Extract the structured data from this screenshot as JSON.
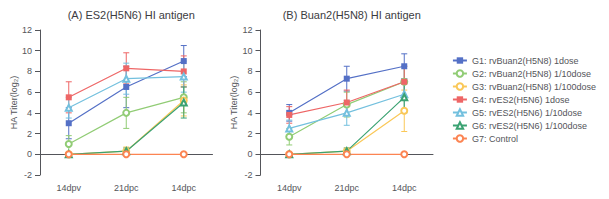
{
  "chart_data": [
    {
      "type": "line",
      "title": "(A) ES2(H5N6) HI antigen",
      "ylabel": "HA Titer(log₂)",
      "categories": [
        "14dpv",
        "21dpc",
        "14dpc"
      ],
      "ylim": [
        -2,
        12
      ],
      "yticks": [
        -2,
        0,
        2,
        4,
        6,
        8,
        10,
        12
      ],
      "grid": false,
      "legend": "right",
      "series": [
        {
          "name": "G1: rvBuan2(H5N8) 1dose",
          "marker": "square",
          "values": [
            3.0,
            6.5,
            9.0
          ],
          "errors": [
            1.5,
            2.0,
            1.5
          ]
        },
        {
          "name": "G2: rvBuan2(H5N8) 1/10dose",
          "marker": "open-circle",
          "values": [
            1.0,
            4.0,
            5.5
          ],
          "errors": [
            0.8,
            1.5,
            1.5
          ]
        },
        {
          "name": "G3: rvBuan2(H5N8) 1/100dose",
          "marker": "open-circle",
          "values": [
            0.0,
            0.3,
            5.2
          ],
          "errors": [
            0.0,
            0.4,
            1.5
          ]
        },
        {
          "name": "G4: rvES2(H5N6) 1dose",
          "marker": "square",
          "values": [
            5.5,
            8.3,
            8.0
          ],
          "errors": [
            1.5,
            1.5,
            1.5
          ]
        },
        {
          "name": "G5: rvES2(H5N6) 1/10dose",
          "marker": "open-triangle",
          "values": [
            4.5,
            7.3,
            7.5
          ],
          "errors": [
            1.0,
            1.5,
            1.5
          ]
        },
        {
          "name": "G6: rvES2(H5N6) 1/100dose",
          "marker": "open-triangle",
          "values": [
            0.0,
            0.3,
            5.0
          ],
          "errors": [
            0.0,
            0.3,
            1.5
          ]
        },
        {
          "name": "G7: Control",
          "marker": "open-circle",
          "values": [
            0.0,
            0.0,
            0.0
          ],
          "errors": [
            0.0,
            0.0,
            0.0
          ]
        }
      ]
    },
    {
      "type": "line",
      "title": "(B) Buan2(H5N8) HI antigen",
      "ylabel": "HA Titer(log₂)",
      "categories": [
        "14dpv",
        "21dpc",
        "14dpc"
      ],
      "ylim": [
        -2,
        12
      ],
      "yticks": [
        -2,
        0,
        2,
        4,
        6,
        8,
        10,
        12
      ],
      "grid": false,
      "series": [
        {
          "name": "G1: rvBuan2(H5N8) 1dose",
          "marker": "square",
          "values": [
            4.0,
            7.3,
            8.5
          ],
          "errors": [
            0.8,
            1.2,
            1.2
          ]
        },
        {
          "name": "G2: rvBuan2(H5N8) 1/10dose",
          "marker": "open-circle",
          "values": [
            1.7,
            4.8,
            7.0
          ],
          "errors": [
            0.8,
            1.2,
            1.5
          ]
        },
        {
          "name": "G3: rvBuan2(H5N8) 1/100dose",
          "marker": "open-circle",
          "values": [
            0.0,
            0.3,
            4.2
          ],
          "errors": [
            0.0,
            0.3,
            2.0
          ]
        },
        {
          "name": "G4: rvES2(H5N6) 1dose",
          "marker": "square",
          "values": [
            3.8,
            5.0,
            7.0
          ],
          "errors": [
            0.8,
            1.2,
            1.5
          ]
        },
        {
          "name": "G5: rvES2(H5N6) 1/10dose",
          "marker": "open-triangle",
          "values": [
            2.5,
            4.0,
            5.8
          ],
          "errors": [
            0.8,
            1.2,
            1.5
          ]
        },
        {
          "name": "G6: rvES2(H5N6) 1/100dose",
          "marker": "open-triangle",
          "values": [
            0.0,
            0.3,
            5.5
          ],
          "errors": [
            0.0,
            0.3,
            1.5
          ]
        },
        {
          "name": "G7: Control",
          "marker": "open-circle",
          "values": [
            0.0,
            0.0,
            0.0
          ],
          "errors": [
            0.0,
            0.0,
            0.0
          ]
        }
      ]
    }
  ]
}
